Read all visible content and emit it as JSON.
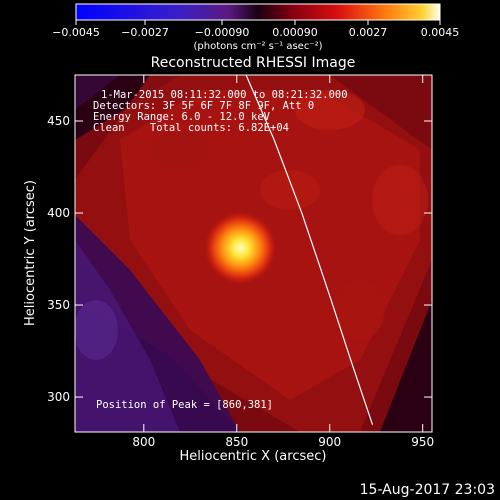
{
  "colorbar": {
    "ticks": [
      "−0.0045",
      "−0.0027",
      "−0.00090",
      "0.00090",
      "0.0027",
      "0.0045"
    ],
    "unit_label": "(photons cm⁻² s⁻¹ asec⁻²)"
  },
  "chart_data": {
    "type": "heatmap",
    "title": "Reconstructed RHESSI Image",
    "xlabel": "Heliocentric X (arcsec)",
    "ylabel": "Heliocentric Y (arcsec)",
    "xlim": [
      763,
      955
    ],
    "ylim": [
      281,
      475
    ],
    "xticks": [
      800,
      850,
      900,
      950
    ],
    "yticks": [
      300,
      350,
      400,
      450
    ],
    "xtick_labels": [
      "800",
      "850",
      "900",
      "950"
    ],
    "ytick_labels": [
      "300",
      "350",
      "400",
      "450"
    ],
    "colorbar_range": [
      -0.0045,
      0.0045
    ],
    "peak": [
      860,
      381
    ],
    "limb_curve_x": [
      855,
      870,
      885,
      900,
      912,
      923
    ],
    "limb_curve_y": [
      475,
      440,
      400,
      355,
      318,
      285
    ],
    "annotations": {
      "time": "1-Mar-2015 08:11:32.000 to 08:21:32.000",
      "detectors": "Detectors: 3F 5F 6F 7F 8F 9F, Att 0",
      "energy": "Energy Range: 6.0 - 12.0 keV",
      "clean": "Clean    Total counts: 6.82E+04",
      "peak": "Position of Peak = [860,381]"
    }
  },
  "footer": {
    "timestamp": "15-Aug-2017 23:03"
  },
  "colors": {
    "background": "#000000",
    "axes": "#ffffff"
  }
}
